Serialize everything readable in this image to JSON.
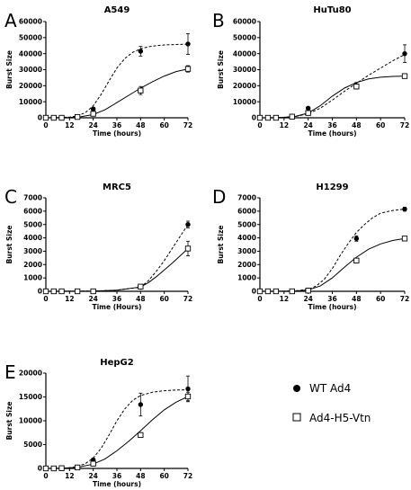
{
  "figure": {
    "legend": {
      "entries": [
        {
          "label": "WT Ad4",
          "marker": "filled-circle",
          "line": "dashed"
        },
        {
          "label": "Ad4-H5-Vtn",
          "marker": "open-square",
          "line": "solid"
        }
      ]
    }
  },
  "chart_data": [
    {
      "type": "line",
      "panel": "A",
      "title": "A549",
      "xlabel": "Time (hours)",
      "ylabel": "Burst Size",
      "xlim": [
        0,
        72
      ],
      "ylim": [
        0,
        60000
      ],
      "xticks": [
        0,
        12,
        24,
        36,
        48,
        60,
        72
      ],
      "yticks": [
        0,
        10000,
        20000,
        30000,
        40000,
        50000,
        60000
      ],
      "series": [
        {
          "name": "WT Ad4",
          "marker": "circle",
          "x": [
            0,
            4,
            8,
            16,
            24,
            48,
            72
          ],
          "values": [
            0,
            0,
            0,
            800,
            5500,
            41500,
            46000
          ],
          "errors": [
            0,
            0,
            0,
            300,
            1000,
            3000,
            6500
          ],
          "fit_x": [
            0,
            6,
            12,
            16,
            20,
            24,
            28,
            32,
            36,
            40,
            44,
            48,
            52,
            56,
            60,
            66,
            72
          ],
          "fit_y": [
            0,
            100,
            400,
            1200,
            3200,
            7500,
            14500,
            23000,
            31000,
            37000,
            40800,
            43000,
            44300,
            45000,
            45400,
            45700,
            45900
          ]
        },
        {
          "name": "Ad4-H5-Vtn",
          "marker": "square",
          "x": [
            0,
            4,
            8,
            16,
            24,
            48,
            72
          ],
          "values": [
            0,
            0,
            0,
            500,
            2500,
            17000,
            30500
          ],
          "errors": [
            0,
            0,
            0,
            200,
            500,
            2500,
            2000
          ],
          "fit_x": [
            0,
            6,
            12,
            18,
            24,
            30,
            36,
            42,
            48,
            54,
            60,
            66,
            72
          ],
          "fit_y": [
            0,
            50,
            200,
            700,
            2000,
            5000,
            9500,
            14000,
            18500,
            22500,
            26000,
            28800,
            30500
          ]
        }
      ]
    },
    {
      "type": "line",
      "panel": "B",
      "title": "HuTu80",
      "xlabel": "Time (hours)",
      "ylabel": "Burst Size",
      "xlim": [
        0,
        72
      ],
      "ylim": [
        0,
        60000
      ],
      "xticks": [
        0,
        12,
        24,
        36,
        48,
        60,
        72
      ],
      "yticks": [
        0,
        10000,
        20000,
        30000,
        40000,
        50000,
        60000
      ],
      "series": [
        {
          "name": "WT Ad4",
          "marker": "circle",
          "x": [
            0,
            4,
            8,
            16,
            24,
            48,
            72
          ],
          "values": [
            0,
            0,
            0,
            1000,
            6000,
            20000,
            40000
          ],
          "errors": [
            0,
            0,
            0,
            300,
            600,
            2000,
            5500
          ],
          "fit_x": [
            0,
            6,
            12,
            18,
            24,
            30,
            36,
            42,
            48,
            54,
            60,
            66,
            72
          ],
          "fit_y": [
            0,
            80,
            300,
            900,
            2500,
            6000,
            11000,
            16500,
            21500,
            26500,
            31000,
            35500,
            39500
          ]
        },
        {
          "name": "Ad4-H5-Vtn",
          "marker": "square",
          "x": [
            0,
            4,
            8,
            16,
            24,
            48,
            72
          ],
          "values": [
            0,
            0,
            0,
            700,
            3000,
            19500,
            26000
          ],
          "errors": [
            0,
            0,
            0,
            200,
            400,
            1500,
            1000
          ],
          "fit_x": [
            0,
            6,
            12,
            18,
            24,
            30,
            36,
            42,
            48,
            54,
            60,
            66,
            72
          ],
          "fit_y": [
            0,
            80,
            300,
            1000,
            3000,
            7500,
            13500,
            18500,
            22000,
            24200,
            25300,
            25800,
            26000
          ]
        }
      ]
    },
    {
      "type": "line",
      "panel": "C",
      "title": "MRC5",
      "xlabel": "Time (Hours)",
      "ylabel": "Burst Size",
      "xlim": [
        0,
        72
      ],
      "ylim": [
        0,
        7000
      ],
      "xticks": [
        0,
        12,
        24,
        36,
        48,
        60,
        72
      ],
      "yticks": [
        0,
        1000,
        2000,
        3000,
        4000,
        5000,
        6000,
        7000
      ],
      "series": [
        {
          "name": "WT Ad4",
          "marker": "circle",
          "x": [
            0,
            4,
            8,
            16,
            24,
            48,
            72
          ],
          "values": [
            0,
            0,
            0,
            0,
            0,
            300,
            5000
          ],
          "errors": [
            0,
            0,
            0,
            0,
            0,
            60,
            250
          ],
          "fit_x": [
            0,
            12,
            24,
            36,
            48,
            52,
            56,
            60,
            64,
            68,
            72
          ],
          "fit_y": [
            0,
            5,
            20,
            80,
            300,
            800,
            1500,
            2300,
            3200,
            4100,
            5000
          ]
        },
        {
          "name": "Ad4-H5-Vtn",
          "marker": "square",
          "x": [
            0,
            4,
            8,
            16,
            24,
            48,
            72
          ],
          "values": [
            0,
            0,
            0,
            0,
            0,
            350,
            3200
          ],
          "errors": [
            0,
            0,
            0,
            0,
            0,
            60,
            550
          ],
          "fit_x": [
            0,
            12,
            24,
            36,
            48,
            52,
            56,
            60,
            64,
            68,
            72
          ],
          "fit_y": [
            0,
            5,
            20,
            80,
            320,
            650,
            1100,
            1600,
            2100,
            2650,
            3200
          ]
        }
      ]
    },
    {
      "type": "line",
      "panel": "D",
      "title": "H1299",
      "xlabel": "Time (hours)",
      "ylabel": "Burst Size",
      "xlim": [
        0,
        72
      ],
      "ylim": [
        0,
        7000
      ],
      "xticks": [
        0,
        12,
        24,
        36,
        48,
        60,
        72
      ],
      "yticks": [
        0,
        1000,
        2000,
        3000,
        4000,
        5000,
        6000,
        7000
      ],
      "series": [
        {
          "name": "WT Ad4",
          "marker": "circle",
          "x": [
            0,
            4,
            8,
            16,
            24,
            48,
            72
          ],
          "values": [
            0,
            0,
            0,
            0,
            100,
            3950,
            6150
          ],
          "errors": [
            0,
            0,
            0,
            0,
            20,
            200,
            150
          ],
          "fit_x": [
            0,
            12,
            18,
            24,
            28,
            32,
            36,
            40,
            44,
            48,
            52,
            56,
            60,
            66,
            72
          ],
          "fit_y": [
            0,
            10,
            40,
            150,
            400,
            900,
            1700,
            2700,
            3600,
            4400,
            5000,
            5500,
            5850,
            6050,
            6150
          ]
        },
        {
          "name": "Ad4-H5-Vtn",
          "marker": "square",
          "x": [
            0,
            4,
            8,
            16,
            24,
            48,
            72
          ],
          "values": [
            0,
            0,
            0,
            0,
            50,
            2300,
            3950
          ],
          "errors": [
            0,
            0,
            0,
            0,
            10,
            100,
            80
          ],
          "fit_x": [
            0,
            12,
            18,
            24,
            30,
            36,
            42,
            48,
            54,
            60,
            66,
            72
          ],
          "fit_y": [
            0,
            10,
            30,
            100,
            400,
            1000,
            1800,
            2550,
            3150,
            3550,
            3800,
            3950
          ]
        }
      ]
    },
    {
      "type": "line",
      "panel": "E",
      "title": "HepG2",
      "xlabel": "Time (hours)",
      "ylabel": "Burst Size",
      "xlim": [
        0,
        72
      ],
      "ylim": [
        0,
        20000
      ],
      "xticks": [
        0,
        12,
        24,
        36,
        48,
        60,
        72
      ],
      "yticks": [
        0,
        5000,
        10000,
        15000,
        20000
      ],
      "series": [
        {
          "name": "WT Ad4",
          "marker": "circle",
          "x": [
            0,
            4,
            8,
            16,
            24,
            48,
            72
          ],
          "values": [
            0,
            0,
            100,
            300,
            1800,
            13400,
            16700
          ],
          "errors": [
            0,
            0,
            50,
            100,
            300,
            2400,
            2700
          ],
          "fit_x": [
            0,
            8,
            12,
            16,
            20,
            24,
            28,
            32,
            36,
            40,
            44,
            48,
            54,
            60,
            66,
            72
          ],
          "fit_y": [
            0,
            50,
            150,
            400,
            1000,
            2200,
            4200,
            7000,
            10000,
            12500,
            14300,
            15300,
            16000,
            16300,
            16450,
            16500
          ]
        },
        {
          "name": "Ad4-H5-Vtn",
          "marker": "square",
          "x": [
            0,
            4,
            8,
            16,
            24,
            48,
            72
          ],
          "values": [
            0,
            0,
            50,
            200,
            1000,
            7000,
            15100
          ],
          "errors": [
            0,
            0,
            30,
            60,
            200,
            500,
            900
          ],
          "fit_x": [
            0,
            8,
            16,
            24,
            30,
            36,
            42,
            48,
            54,
            60,
            66,
            72
          ],
          "fit_y": [
            0,
            40,
            200,
            900,
            2000,
            3700,
            5700,
            7900,
            10200,
            12300,
            13900,
            15100
          ]
        }
      ]
    }
  ]
}
